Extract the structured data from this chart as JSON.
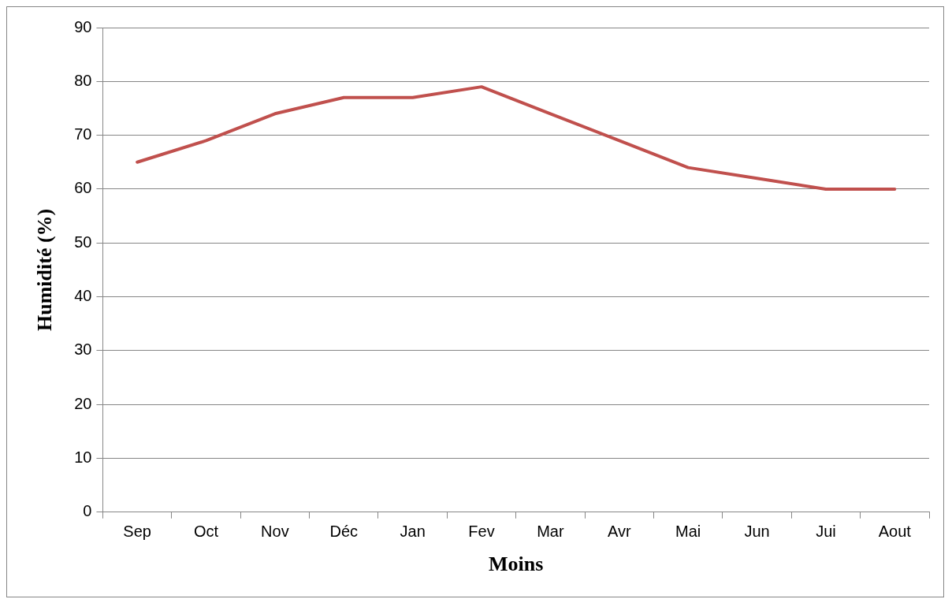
{
  "chart_data": {
    "type": "line",
    "xlabel": "Moins",
    "ylabel": "Humidité (%)",
    "categories": [
      "Sep",
      "Oct",
      "Nov",
      "Déc",
      "Jan",
      "Fev",
      "Mar",
      "Avr",
      "Mai",
      "Jun",
      "Jui",
      "Aout"
    ],
    "series": [
      {
        "color": "#c0504d",
        "values": [
          65,
          69,
          74,
          77,
          77,
          79,
          74,
          69,
          64,
          62,
          60,
          60
        ]
      }
    ],
    "ylim": [
      0,
      90
    ],
    "yticks": [
      0,
      10,
      20,
      30,
      40,
      50,
      60,
      70,
      80,
      90
    ],
    "grid": "y",
    "legend": false,
    "marker": "none",
    "line_style": "solid"
  }
}
